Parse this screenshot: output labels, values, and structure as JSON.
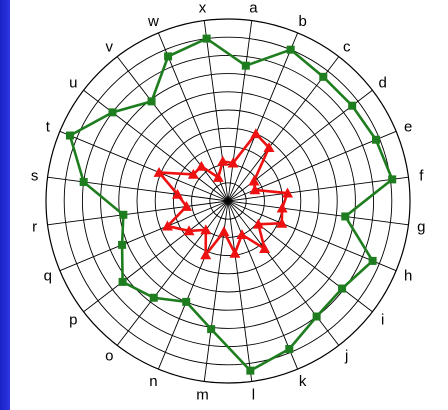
{
  "chart_data": {
    "type": "radar",
    "title": "",
    "axes": [
      "a",
      "b",
      "c",
      "d",
      "e",
      "f",
      "g",
      "h",
      "i",
      "j",
      "k",
      "l",
      "m",
      "n",
      "o",
      "p",
      "q",
      "r",
      "s",
      "t",
      "u",
      "v",
      "w",
      "x"
    ],
    "radial_range": [
      0,
      10
    ],
    "rings": 10,
    "grid": true,
    "legend": "none",
    "series": [
      {
        "color": "#1e7d1e",
        "marker": "square",
        "values": [
          7.5,
          9.0,
          8.6,
          8.6,
          8.8,
          9.1,
          6.5,
          8.6,
          7.9,
          8.0,
          8.8,
          9.4,
          7.1,
          6.0,
          6.7,
          7.3,
          6.3,
          5.8,
          8.0,
          9.4,
          8.0,
          6.9,
          8.6,
          9.0
        ]
      },
      {
        "color": "#ee1111",
        "marker": "triangle",
        "values": [
          2.1,
          4.0,
          3.7,
          1.8,
          1.6,
          3.3,
          3.0,
          3.2,
          2.1,
          3.3,
          2.0,
          2.9,
          1.7,
          3.2,
          2.0,
          2.7,
          3.6,
          2.3,
          2.8,
          4.1,
          2.4,
          2.4,
          1.4,
          2.2
        ]
      }
    ]
  }
}
